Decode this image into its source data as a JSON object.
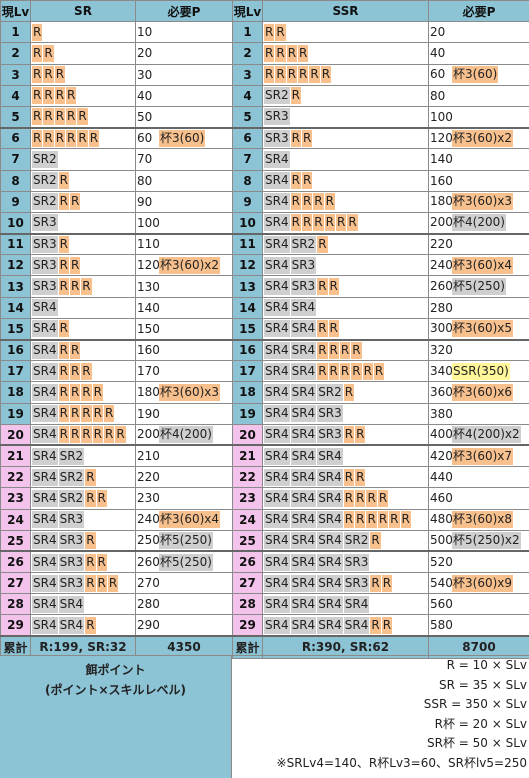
{
  "header": {
    "lv": "現Lv",
    "sr": "SR",
    "ssr": "SSR",
    "points": "必要P"
  },
  "rows": [
    {
      "lv": "1",
      "l_sk": [
        "R"
      ],
      "l_pt": "10",
      "l_cup": null,
      "r_sk": [
        "R",
        "R"
      ],
      "r_pt": "20",
      "r_cup": null
    },
    {
      "lv": "2",
      "l_sk": [
        "R",
        "R"
      ],
      "l_pt": "20",
      "l_cup": null,
      "r_sk": [
        "R",
        "R",
        "R",
        "R"
      ],
      "r_pt": "40",
      "r_cup": null
    },
    {
      "lv": "3",
      "l_sk": [
        "R",
        "R",
        "R"
      ],
      "l_pt": "30",
      "l_cup": null,
      "r_sk": [
        "R",
        "R",
        "R",
        "R",
        "R",
        "R"
      ],
      "r_pt": "60",
      "r_cup": "杯3(60)"
    },
    {
      "lv": "4",
      "l_sk": [
        "R",
        "R",
        "R",
        "R"
      ],
      "l_pt": "40",
      "l_cup": null,
      "r_sk": [
        "SR2",
        "R"
      ],
      "r_pt": "80",
      "r_cup": null
    },
    {
      "lv": "5",
      "l_sk": [
        "R",
        "R",
        "R",
        "R",
        "R"
      ],
      "l_pt": "50",
      "l_cup": null,
      "r_sk": [
        "SR3"
      ],
      "r_pt": "100",
      "r_cup": null
    },
    {
      "lv": "6",
      "l_sk": [
        "R",
        "R",
        "R",
        "R",
        "R",
        "R"
      ],
      "l_pt": "60",
      "l_cup": "杯3(60)",
      "r_sk": [
        "SR3",
        "R",
        "R"
      ],
      "r_pt": "120",
      "r_cup": "杯3(60)x2"
    },
    {
      "lv": "7",
      "l_sk": [
        "SR2"
      ],
      "l_pt": "70",
      "l_cup": null,
      "r_sk": [
        "SR4"
      ],
      "r_pt": "140",
      "r_cup": null
    },
    {
      "lv": "8",
      "l_sk": [
        "SR2",
        "R"
      ],
      "l_pt": "80",
      "l_cup": null,
      "r_sk": [
        "SR4",
        "R",
        "R"
      ],
      "r_pt": "160",
      "r_cup": null
    },
    {
      "lv": "9",
      "l_sk": [
        "SR2",
        "R",
        "R"
      ],
      "l_pt": "90",
      "l_cup": null,
      "r_sk": [
        "SR4",
        "R",
        "R",
        "R",
        "R"
      ],
      "r_pt": "180",
      "r_cup": "杯3(60)x3"
    },
    {
      "lv": "10",
      "l_sk": [
        "SR3"
      ],
      "l_pt": "100",
      "l_cup": null,
      "r_sk": [
        "SR4",
        "R",
        "R",
        "R",
        "R",
        "R",
        "R"
      ],
      "r_pt": "200",
      "r_cup": "杯4(200)"
    },
    {
      "lv": "11",
      "l_sk": [
        "SR3",
        "R"
      ],
      "l_pt": "110",
      "l_cup": null,
      "r_sk": [
        "SR4",
        "SR2",
        "R"
      ],
      "r_pt": "220",
      "r_cup": null
    },
    {
      "lv": "12",
      "l_sk": [
        "SR3",
        "R",
        "R"
      ],
      "l_pt": "120",
      "l_cup": "杯3(60)x2",
      "r_sk": [
        "SR4",
        "SR3"
      ],
      "r_pt": "240",
      "r_cup": "杯3(60)x4"
    },
    {
      "lv": "13",
      "l_sk": [
        "SR3",
        "R",
        "R",
        "R"
      ],
      "l_pt": "130",
      "l_cup": null,
      "r_sk": [
        "SR4",
        "SR3",
        "R",
        "R"
      ],
      "r_pt": "260",
      "r_cup": "杯5(250)"
    },
    {
      "lv": "14",
      "l_sk": [
        "SR4"
      ],
      "l_pt": "140",
      "l_cup": null,
      "r_sk": [
        "SR4",
        "SR4"
      ],
      "r_pt": "280",
      "r_cup": null
    },
    {
      "lv": "15",
      "l_sk": [
        "SR4",
        "R"
      ],
      "l_pt": "150",
      "l_cup": null,
      "r_sk": [
        "SR4",
        "SR4",
        "R",
        "R"
      ],
      "r_pt": "300",
      "r_cup": "杯3(60)x5"
    },
    {
      "lv": "16",
      "l_sk": [
        "SR4",
        "R",
        "R"
      ],
      "l_pt": "160",
      "l_cup": null,
      "r_sk": [
        "SR4",
        "SR4",
        "R",
        "R",
        "R",
        "R"
      ],
      "r_pt": "320",
      "r_cup": null
    },
    {
      "lv": "17",
      "l_sk": [
        "SR4",
        "R",
        "R",
        "R"
      ],
      "l_pt": "170",
      "l_cup": null,
      "r_sk": [
        "SR4",
        "SR4",
        "R",
        "R",
        "R",
        "R",
        "R",
        "R"
      ],
      "r_pt": "340",
      "r_cup": "SSR(350)"
    },
    {
      "lv": "18",
      "l_sk": [
        "SR4",
        "R",
        "R",
        "R",
        "R"
      ],
      "l_pt": "180",
      "l_cup": "杯3(60)x3",
      "r_sk": [
        "SR4",
        "SR4",
        "SR2",
        "R"
      ],
      "r_pt": "360",
      "r_cup": "杯3(60)x6"
    },
    {
      "lv": "19",
      "l_sk": [
        "SR4",
        "R",
        "R",
        "R",
        "R",
        "R"
      ],
      "l_pt": "190",
      "l_cup": null,
      "r_sk": [
        "SR4",
        "SR4",
        "SR3"
      ],
      "r_pt": "380",
      "r_cup": null
    },
    {
      "lv": "20",
      "l_sk": [
        "SR4",
        "R",
        "R",
        "R",
        "R",
        "R",
        "R"
      ],
      "l_pt": "200",
      "l_cup": "杯4(200)",
      "r_sk": [
        "SR4",
        "SR4",
        "SR3",
        "R",
        "R"
      ],
      "r_pt": "400",
      "r_cup": "杯4(200)x2"
    },
    {
      "lv": "21",
      "l_sk": [
        "SR4",
        "SR2"
      ],
      "l_pt": "210",
      "l_cup": null,
      "r_sk": [
        "SR4",
        "SR4",
        "SR4"
      ],
      "r_pt": "420",
      "r_cup": "杯3(60)x7"
    },
    {
      "lv": "22",
      "l_sk": [
        "SR4",
        "SR2",
        "R"
      ],
      "l_pt": "220",
      "l_cup": null,
      "r_sk": [
        "SR4",
        "SR4",
        "SR4",
        "R",
        "R"
      ],
      "r_pt": "440",
      "r_cup": null
    },
    {
      "lv": "23",
      "l_sk": [
        "SR4",
        "SR2",
        "R",
        "R"
      ],
      "l_pt": "230",
      "l_cup": null,
      "r_sk": [
        "SR4",
        "SR4",
        "SR4",
        "R",
        "R",
        "R",
        "R"
      ],
      "r_pt": "460",
      "r_cup": null
    },
    {
      "lv": "24",
      "l_sk": [
        "SR4",
        "SR3"
      ],
      "l_pt": "240",
      "l_cup": "杯3(60)x4",
      "r_sk": [
        "SR4",
        "SR4",
        "SR4",
        "R",
        "R",
        "R",
        "R",
        "R",
        "R"
      ],
      "r_pt": "480",
      "r_cup": "杯3(60)x8"
    },
    {
      "lv": "25",
      "l_sk": [
        "SR4",
        "SR3",
        "R"
      ],
      "l_pt": "250",
      "l_cup": "杯5(250)",
      "r_sk": [
        "SR4",
        "SR4",
        "SR4",
        "SR2",
        "R"
      ],
      "r_pt": "500",
      "r_cup": "杯5(250)x2"
    },
    {
      "lv": "26",
      "l_sk": [
        "SR4",
        "SR3",
        "R",
        "R"
      ],
      "l_pt": "260",
      "l_cup": "杯5(250)",
      "r_sk": [
        "SR4",
        "SR4",
        "SR4",
        "SR3"
      ],
      "r_pt": "520",
      "r_cup": null
    },
    {
      "lv": "27",
      "l_sk": [
        "SR4",
        "SR3",
        "R",
        "R",
        "R"
      ],
      "l_pt": "270",
      "l_cup": null,
      "r_sk": [
        "SR4",
        "SR4",
        "SR4",
        "SR3",
        "R",
        "R"
      ],
      "r_pt": "540",
      "r_cup": "杯3(60)x9"
    },
    {
      "lv": "28",
      "l_sk": [
        "SR4",
        "SR4"
      ],
      "l_pt": "280",
      "l_cup": null,
      "r_sk": [
        "SR4",
        "SR4",
        "SR4",
        "SR4"
      ],
      "r_pt": "560",
      "r_cup": null
    },
    {
      "lv": "29",
      "l_sk": [
        "SR4",
        "SR4",
        "R"
      ],
      "l_pt": "290",
      "l_cup": null,
      "r_sk": [
        "SR4",
        "SR4",
        "SR4",
        "SR4",
        "R",
        "R"
      ],
      "r_pt": "580",
      "r_cup": null
    }
  ],
  "total": {
    "label": "累計",
    "left_sum": "R:199, SR:32",
    "left_pts": "4350",
    "right_sum": "R:390, SR:62",
    "right_pts": "8700"
  },
  "footer": {
    "title_line1": "餌ポイント",
    "title_line2": "(ポイント×スキルレベル)",
    "formulas": [
      "R = 10 × SLv",
      "SR = 35 × SLv",
      "SSR = 350 × SLv",
      "R杯 = 20 × SLv",
      "SR杯 = 50 × SLv",
      "※SRLv4=140、R杯Lv3=60、SR杯lv5=250"
    ]
  },
  "colors": {
    "header_bg": "#8cc4d6",
    "pink_lv": "#f3c3ec",
    "r_token": "#f7c08d",
    "sr_token": "#cfcfcf",
    "ssr_token": "#fff79a"
  }
}
